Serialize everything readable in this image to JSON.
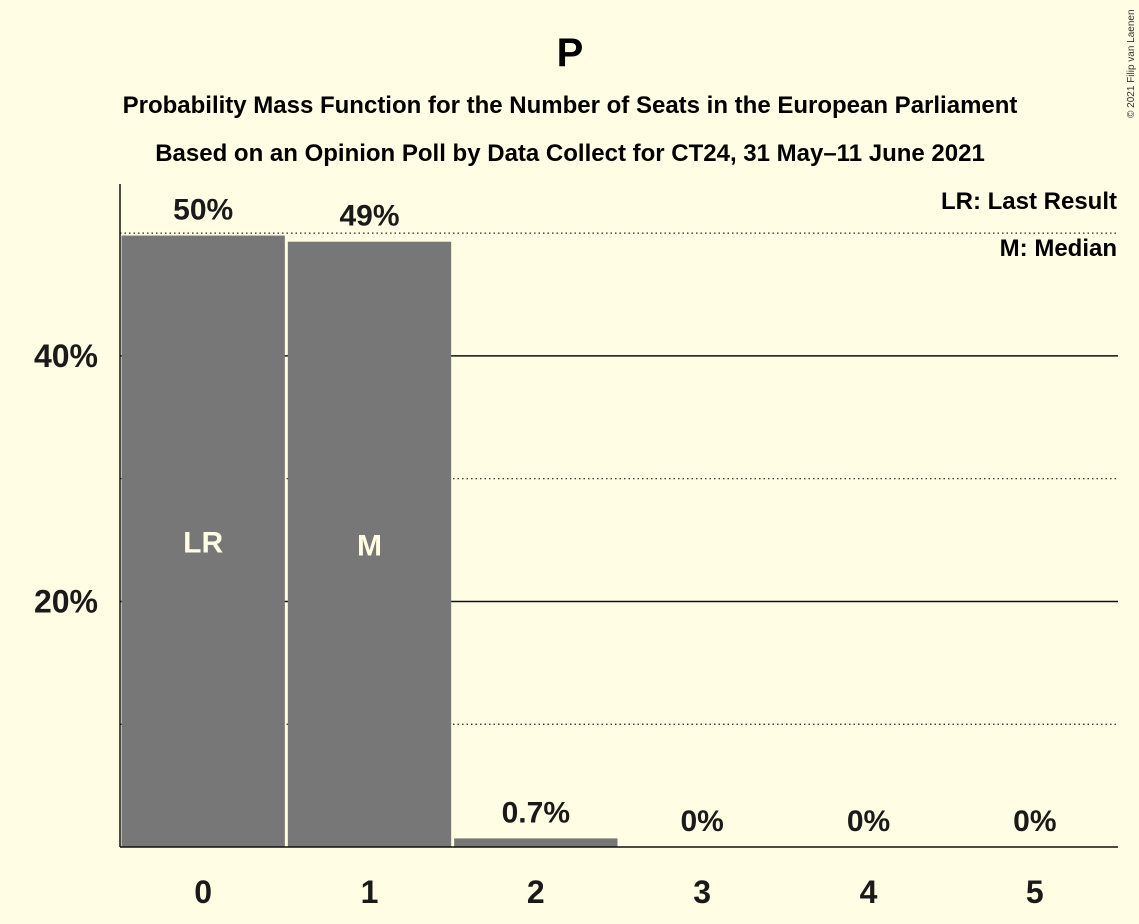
{
  "title": "P",
  "subtitle_1": "Probability Mass Function for the Number of Seats in the European Parliament",
  "subtitle_2": "Based on an Opinion Poll by Data Collect for CT24, 31 May–11 June 2021",
  "copyright": "© 2021 Filip van Laenen",
  "legend": {
    "last_result": "LR: Last Result",
    "median": "M: Median"
  },
  "colors": {
    "background": "#FFFDE4",
    "bar": "#777777",
    "text": "#1a1a1a"
  },
  "chart_data": {
    "type": "bar",
    "categories": [
      "0",
      "1",
      "2",
      "3",
      "4",
      "5"
    ],
    "values": [
      49.8,
      49.3,
      0.7,
      0,
      0,
      0
    ],
    "data_labels": [
      "50%",
      "49%",
      "0.7%",
      "0%",
      "0%",
      "0%"
    ],
    "bar_markers": [
      "LR",
      "M",
      "",
      "",
      "",
      ""
    ],
    "ylim": [
      0,
      54
    ],
    "y_ticks": [
      {
        "value": 20,
        "label": "20%"
      },
      {
        "value": 40,
        "label": "40%"
      }
    ],
    "solid_gridlines": [
      20,
      40
    ],
    "dotted_gridlines": [
      10,
      30,
      50
    ],
    "xlabel": "",
    "ylabel": "",
    "grid": true,
    "legend_placement": "top-right"
  }
}
